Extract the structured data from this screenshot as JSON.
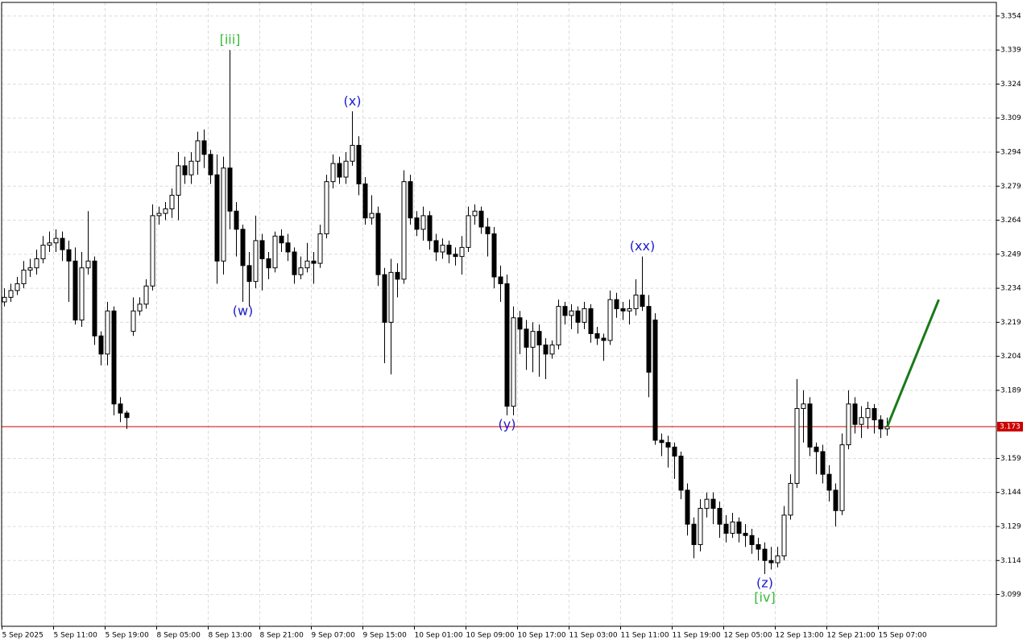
{
  "chart_data": {
    "type": "candlestick",
    "categories": [
      "5 Sep 2025",
      null,
      null,
      null,
      null,
      null,
      null,
      null,
      "5 Sep 11:00",
      null,
      null,
      null,
      null,
      null,
      null,
      null,
      "5 Sep 19:00",
      null,
      null,
      null,
      null,
      null,
      null,
      null,
      "8 Sep 05:00",
      null,
      null,
      null,
      null,
      null,
      null,
      null,
      "8 Sep 13:00",
      null,
      null,
      null,
      null,
      null,
      null,
      null,
      "8 Sep 21:00",
      null,
      null,
      null,
      null,
      null,
      null,
      null,
      "9 Sep 07:00",
      null,
      null,
      null,
      null,
      null,
      null,
      null,
      "9 Sep 15:00",
      null,
      null,
      null,
      null,
      null,
      null,
      null,
      "10 Sep 01:00",
      null,
      null,
      null,
      null,
      null,
      null,
      null,
      "10 Sep 09:00",
      null,
      null,
      null,
      null,
      null,
      null,
      null,
      "10 Sep 17:00",
      null,
      null,
      null,
      null,
      null,
      null,
      null,
      "11 Sep 03:00",
      null,
      null,
      null,
      null,
      null,
      null,
      null,
      "11 Sep 11:00",
      null,
      null,
      null,
      null,
      null,
      null,
      null,
      "11 Sep 19:00",
      null,
      null,
      null,
      null,
      null,
      null,
      null,
      "12 Sep 05:00",
      null,
      null,
      null,
      null,
      null,
      null,
      null,
      "12 Sep 13:00",
      null,
      null,
      null,
      null,
      null,
      null,
      null,
      "12 Sep 21:00",
      null,
      null,
      null,
      null,
      null,
      null,
      null,
      "15 Sep 07:00",
      null
    ],
    "ohlc": [
      [
        3.228,
        3.234,
        3.226,
        3.23
      ],
      [
        3.23,
        3.236,
        3.228,
        3.233
      ],
      [
        3.233,
        3.239,
        3.231,
        3.236
      ],
      [
        3.236,
        3.246,
        3.234,
        3.242
      ],
      [
        3.242,
        3.247,
        3.239,
        3.243
      ],
      [
        3.243,
        3.251,
        3.24,
        3.247
      ],
      [
        3.247,
        3.257,
        3.245,
        3.253
      ],
      [
        3.253,
        3.259,
        3.25,
        3.254
      ],
      [
        3.254,
        3.26,
        3.25,
        3.256
      ],
      [
        3.256,
        3.259,
        3.246,
        3.251
      ],
      [
        3.251,
        3.255,
        3.228,
        3.246
      ],
      [
        3.246,
        3.252,
        3.218,
        3.22
      ],
      [
        3.22,
        3.25,
        3.217,
        3.243
      ],
      [
        3.243,
        3.268,
        3.24,
        3.246
      ],
      [
        3.246,
        3.248,
        3.209,
        3.213
      ],
      [
        3.213,
        3.215,
        3.2,
        3.205
      ],
      [
        3.205,
        3.228,
        3.2,
        3.224
      ],
      [
        3.224,
        3.226,
        3.178,
        3.183
      ],
      [
        3.183,
        3.186,
        3.175,
        3.179
      ],
      [
        3.179,
        3.18,
        3.172,
        3.177
      ],
      [
        3.215,
        3.23,
        3.213,
        3.224
      ],
      [
        3.224,
        3.23,
        3.222,
        3.227
      ],
      [
        3.227,
        3.238,
        3.225,
        3.235
      ],
      [
        3.235,
        3.271,
        3.233,
        3.266
      ],
      [
        3.266,
        3.27,
        3.262,
        3.267
      ],
      [
        3.267,
        3.272,
        3.264,
        3.269
      ],
      [
        3.269,
        3.278,
        3.265,
        3.275
      ],
      [
        3.275,
        3.294,
        3.264,
        3.288
      ],
      [
        3.288,
        3.292,
        3.28,
        3.284
      ],
      [
        3.284,
        3.294,
        3.28,
        3.29
      ],
      [
        3.29,
        3.303,
        3.284,
        3.299
      ],
      [
        3.299,
        3.304,
        3.287,
        3.293
      ],
      [
        3.293,
        3.295,
        3.28,
        3.284
      ],
      [
        3.284,
        3.293,
        3.236,
        3.246
      ],
      [
        3.246,
        3.292,
        3.24,
        3.287
      ],
      [
        3.287,
        3.339,
        3.26,
        3.268
      ],
      [
        3.268,
        3.272,
        3.248,
        3.26
      ],
      [
        3.26,
        3.262,
        3.228,
        3.244
      ],
      [
        3.244,
        3.25,
        3.226,
        3.237
      ],
      [
        3.237,
        3.266,
        3.234,
        3.255
      ],
      [
        3.255,
        3.258,
        3.233,
        3.247
      ],
      [
        3.247,
        3.25,
        3.238,
        3.243
      ],
      [
        3.243,
        3.259,
        3.241,
        3.257
      ],
      [
        3.257,
        3.26,
        3.25,
        3.254
      ],
      [
        3.254,
        3.258,
        3.246,
        3.25
      ],
      [
        3.25,
        3.252,
        3.236,
        3.24
      ],
      [
        3.24,
        3.248,
        3.238,
        3.243
      ],
      [
        3.243,
        3.254,
        3.241,
        3.246
      ],
      [
        3.246,
        3.25,
        3.236,
        3.245
      ],
      [
        3.245,
        3.262,
        3.243,
        3.258
      ],
      [
        3.258,
        3.284,
        3.256,
        3.281
      ],
      [
        3.281,
        3.293,
        3.278,
        3.289
      ],
      [
        3.289,
        3.292,
        3.28,
        3.283
      ],
      [
        3.283,
        3.294,
        3.28,
        3.29
      ],
      [
        3.29,
        3.312,
        3.288,
        3.297
      ],
      [
        3.297,
        3.301,
        3.275,
        3.28
      ],
      [
        3.28,
        3.283,
        3.262,
        3.265
      ],
      [
        3.265,
        3.275,
        3.262,
        3.267
      ],
      [
        3.267,
        3.27,
        3.235,
        3.24
      ],
      [
        3.24,
        3.243,
        3.201,
        3.219
      ],
      [
        3.219,
        3.247,
        3.196,
        3.241
      ],
      [
        3.241,
        3.245,
        3.23,
        3.238
      ],
      [
        3.238,
        3.286,
        3.236,
        3.281
      ],
      [
        3.281,
        3.284,
        3.262,
        3.265
      ],
      [
        3.265,
        3.268,
        3.257,
        3.26
      ],
      [
        3.26,
        3.27,
        3.255,
        3.266
      ],
      [
        3.266,
        3.268,
        3.251,
        3.255
      ],
      [
        3.255,
        3.258,
        3.246,
        3.25
      ],
      [
        3.25,
        3.256,
        3.247,
        3.253
      ],
      [
        3.253,
        3.255,
        3.245,
        3.249
      ],
      [
        3.249,
        3.252,
        3.244,
        3.248
      ],
      [
        3.248,
        3.257,
        3.24,
        3.252
      ],
      [
        3.252,
        3.27,
        3.25,
        3.266
      ],
      [
        3.266,
        3.271,
        3.262,
        3.268
      ],
      [
        3.268,
        3.27,
        3.258,
        3.261
      ],
      [
        3.261,
        3.265,
        3.248,
        3.258
      ],
      [
        3.258,
        3.261,
        3.234,
        3.239
      ],
      [
        3.239,
        3.244,
        3.228,
        3.236
      ],
      [
        3.236,
        3.24,
        3.178,
        3.182
      ],
      [
        3.182,
        3.226,
        3.178,
        3.221
      ],
      [
        3.221,
        3.224,
        3.205,
        3.216
      ],
      [
        3.216,
        3.22,
        3.198,
        3.208
      ],
      [
        3.208,
        3.219,
        3.197,
        3.215
      ],
      [
        3.215,
        3.218,
        3.195,
        3.209
      ],
      [
        3.209,
        3.212,
        3.194,
        3.205
      ],
      [
        3.205,
        3.211,
        3.203,
        3.209
      ],
      [
        3.209,
        3.229,
        3.207,
        3.226
      ],
      [
        3.226,
        3.228,
        3.218,
        3.222
      ],
      [
        3.222,
        3.227,
        3.216,
        3.224
      ],
      [
        3.224,
        3.226,
        3.214,
        3.219
      ],
      [
        3.219,
        3.228,
        3.216,
        3.225
      ],
      [
        3.225,
        3.227,
        3.21,
        3.214
      ],
      [
        3.214,
        3.217,
        3.209,
        3.212
      ],
      [
        3.212,
        3.214,
        3.202,
        3.211
      ],
      [
        3.211,
        3.233,
        3.209,
        3.229
      ],
      [
        3.229,
        3.232,
        3.221,
        3.225
      ],
      [
        3.225,
        3.228,
        3.22,
        3.224
      ],
      [
        3.224,
        3.229,
        3.218,
        3.225
      ],
      [
        3.225,
        3.238,
        3.222,
        3.231
      ],
      [
        3.231,
        3.248,
        3.224,
        3.226
      ],
      [
        3.226,
        3.231,
        3.186,
        3.197
      ],
      [
        3.22,
        3.223,
        3.165,
        3.167
      ],
      [
        3.167,
        3.17,
        3.16,
        3.166
      ],
      [
        3.166,
        3.169,
        3.155,
        3.164
      ],
      [
        3.164,
        3.166,
        3.15,
        3.16
      ],
      [
        3.16,
        3.162,
        3.141,
        3.145
      ],
      [
        3.145,
        3.148,
        3.125,
        3.13
      ],
      [
        3.13,
        3.133,
        3.115,
        3.121
      ],
      [
        3.121,
        3.141,
        3.118,
        3.137
      ],
      [
        3.137,
        3.144,
        3.133,
        3.141
      ],
      [
        3.141,
        3.144,
        3.13,
        3.137
      ],
      [
        3.137,
        3.14,
        3.124,
        3.13
      ],
      [
        3.13,
        3.134,
        3.122,
        3.126
      ],
      [
        3.126,
        3.135,
        3.124,
        3.131
      ],
      [
        3.131,
        3.133,
        3.122,
        3.126
      ],
      [
        3.126,
        3.13,
        3.12,
        3.125
      ],
      [
        3.125,
        3.128,
        3.117,
        3.121
      ],
      [
        3.121,
        3.124,
        3.114,
        3.119
      ],
      [
        3.119,
        3.122,
        3.108,
        3.114
      ],
      [
        3.114,
        3.12,
        3.11,
        3.113
      ],
      [
        3.113,
        3.12,
        3.111,
        3.116
      ],
      [
        3.116,
        3.138,
        3.114,
        3.134
      ],
      [
        3.134,
        3.152,
        3.132,
        3.148
      ],
      [
        3.148,
        3.194,
        3.146,
        3.181
      ],
      [
        3.181,
        3.189,
        3.166,
        3.183
      ],
      [
        3.183,
        3.186,
        3.16,
        3.164
      ],
      [
        3.164,
        3.166,
        3.152,
        3.162
      ],
      [
        3.162,
        3.165,
        3.148,
        3.152
      ],
      [
        3.152,
        3.156,
        3.14,
        3.145
      ],
      [
        3.145,
        3.148,
        3.129,
        3.136
      ],
      [
        3.136,
        3.17,
        3.134,
        3.165
      ],
      [
        3.165,
        3.189,
        3.163,
        3.183
      ],
      [
        3.183,
        3.186,
        3.17,
        3.174
      ],
      [
        3.174,
        3.182,
        3.168,
        3.177
      ],
      [
        3.177,
        3.184,
        3.172,
        3.181
      ],
      [
        3.181,
        3.183,
        3.17,
        3.176
      ],
      [
        3.176,
        3.178,
        3.168,
        3.172
      ],
      [
        3.172,
        3.177,
        3.169,
        3.173
      ]
    ],
    "ylim": [
      3.085,
      3.36
    ],
    "yticks": [
      3.354,
      3.339,
      3.324,
      3.309,
      3.294,
      3.279,
      3.264,
      3.249,
      3.234,
      3.219,
      3.204,
      3.189,
      3.159,
      3.144,
      3.129,
      3.114,
      3.099
    ],
    "grid": true,
    "up_color": "#ffffff",
    "down_color": "#000000",
    "current_price": {
      "value": 3.173,
      "color": "#cc0000"
    },
    "projection": {
      "color": "#1a7a1a",
      "from": [
        137,
        3.173
      ],
      "to": [
        145,
        3.229
      ]
    },
    "annotations": [
      {
        "text": "[iii]",
        "candle": 35,
        "position": "above",
        "color": "#33bb33"
      },
      {
        "text": "(x)",
        "candle": 54,
        "position": "above",
        "color": "#1a1acc"
      },
      {
        "text": "(xx)",
        "candle": 99,
        "position": "above",
        "color": "#1a1acc"
      },
      {
        "text": "(w)",
        "candle": 37,
        "position": "below",
        "color": "#1a1acc"
      },
      {
        "text": "(y)",
        "candle": 78,
        "position": "below",
        "color": "#1a1acc"
      },
      {
        "text": "(z)",
        "candle": 118,
        "position": "below",
        "color": "#1a1acc"
      },
      {
        "text": "[iv]",
        "candle": 118,
        "position": "below",
        "color": "#33bb33"
      }
    ]
  }
}
